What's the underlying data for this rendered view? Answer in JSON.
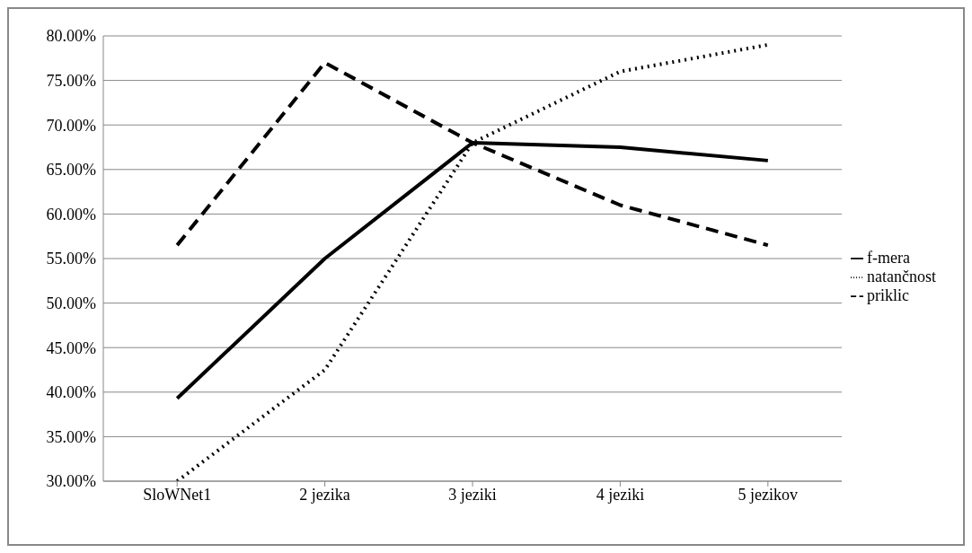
{
  "chart_data": {
    "type": "line",
    "categories": [
      "SloWNet1",
      "2 jezika",
      "3 jeziki",
      "4 jeziki",
      "5 jezikov"
    ],
    "series": [
      {
        "name": "priklic",
        "color": "#000000",
        "line_style": "dashed",
        "values": [
          56.5,
          77,
          68,
          61,
          56.5
        ]
      },
      {
        "name": "natančnost",
        "color": "#000000",
        "line_style": "dotted",
        "values": [
          30,
          42.5,
          68,
          76,
          79
        ]
      },
      {
        "name": "f-mera",
        "color": "#000000",
        "line_style": "solid",
        "values": [
          39.3,
          55,
          68,
          67.5,
          66
        ]
      }
    ],
    "ylim": [
      30,
      80
    ],
    "yticks": [
      {
        "value": 30,
        "label": "30.00%"
      },
      {
        "value": 35,
        "label": "35.00%"
      },
      {
        "value": 40,
        "label": "40.00%"
      },
      {
        "value": 45,
        "label": "45.00%"
      },
      {
        "value": 50,
        "label": "50.00%"
      },
      {
        "value": 55,
        "label": "55.00%"
      },
      {
        "value": 60,
        "label": "60.00%"
      },
      {
        "value": 65,
        "label": "65.00%"
      },
      {
        "value": 70,
        "label": "70.00%"
      },
      {
        "value": 75,
        "label": "75.00%"
      },
      {
        "value": 80,
        "label": "80.00%"
      }
    ],
    "grid": "y",
    "legend": "right",
    "marker": "none"
  }
}
